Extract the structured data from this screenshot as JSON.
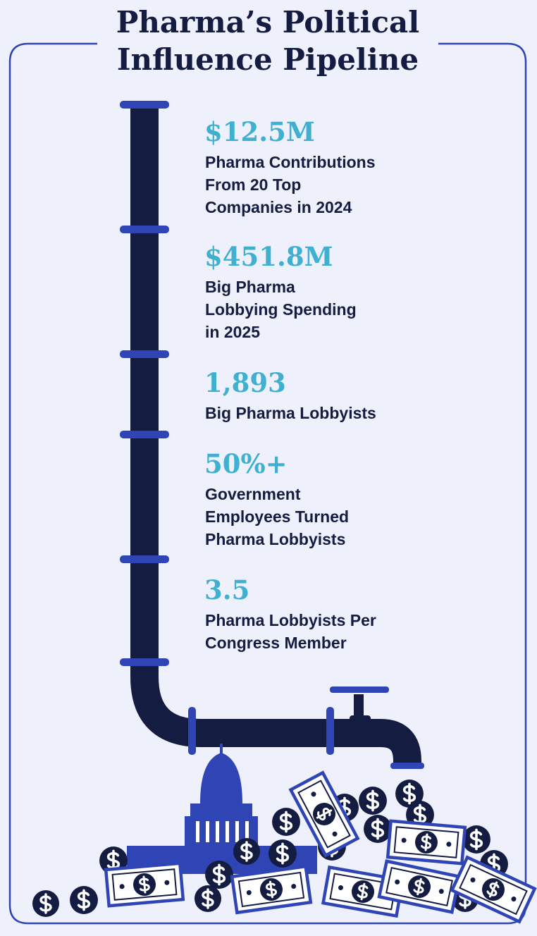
{
  "title": [
    "Pharma’s Political",
    "Influence Pipeline"
  ],
  "stats": [
    {
      "value": "$12.5M",
      "label": [
        "Pharma Contributions",
        "From 20 Top",
        "Companies in 2024"
      ]
    },
    {
      "value": "$451.8M",
      "label": [
        "Big Pharma",
        "Lobbying Spending",
        "in 2025"
      ]
    },
    {
      "value": "1,893",
      "label": [
        "Big Pharma Lobbyists"
      ]
    },
    {
      "value": "50%+",
      "label": [
        "Government",
        "Employees Turned",
        "Pharma Lobbyists"
      ]
    },
    {
      "value": "3.5",
      "label": [
        "Pharma Lobbyists Per",
        "Congress Member"
      ]
    }
  ]
}
